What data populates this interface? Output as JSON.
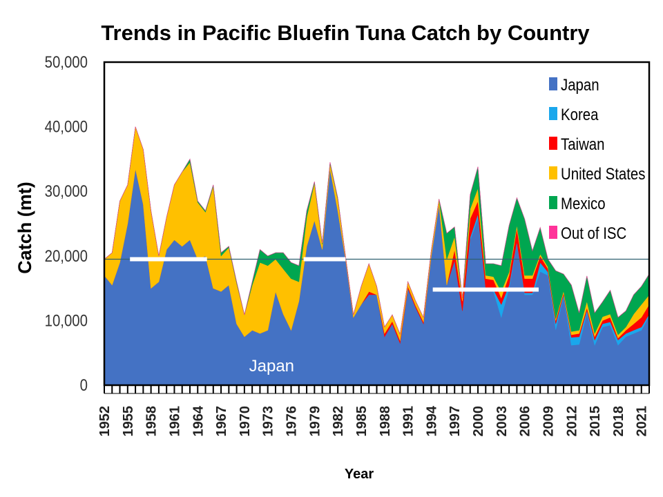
{
  "chart_data": {
    "type": "area",
    "stacked": true,
    "title": "Trends in Pacific Bluefin Tuna Catch by Country",
    "xlabel": "Year",
    "ylabel": "Catch (mt)",
    "ylim": [
      0,
      50000
    ],
    "xlim": [
      1952,
      2022
    ],
    "yticks": [
      0,
      10000,
      20000,
      30000,
      40000,
      50000
    ],
    "ytick_labels": [
      "0",
      "10,000",
      "20,000",
      "30,000",
      "40,000",
      "50,000"
    ],
    "xtick_labels": [
      "1952",
      "1955",
      "1958",
      "1961",
      "1964",
      "1967",
      "1970",
      "1973",
      "1976",
      "1979",
      "1982",
      "1985",
      "1988",
      "1991",
      "1994",
      "1997",
      "2000",
      "2003",
      "2006",
      "2009",
      "2012",
      "2015",
      "2018",
      "2021"
    ],
    "legend_position": "top-right",
    "x": [
      1952,
      1953,
      1954,
      1955,
      1956,
      1957,
      1958,
      1959,
      1960,
      1961,
      1962,
      1963,
      1964,
      1965,
      1966,
      1967,
      1968,
      1969,
      1970,
      1971,
      1972,
      1973,
      1974,
      1975,
      1976,
      1977,
      1978,
      1979,
      1980,
      1981,
      1982,
      1983,
      1984,
      1985,
      1986,
      1987,
      1988,
      1989,
      1990,
      1991,
      1992,
      1993,
      1994,
      1995,
      1996,
      1997,
      1998,
      1999,
      2000,
      2001,
      2002,
      2003,
      2004,
      2005,
      2006,
      2007,
      2008,
      2009,
      2010,
      2011,
      2012,
      2013,
      2014,
      2015,
      2016,
      2017,
      2018,
      2019,
      2020,
      2021,
      2022
    ],
    "series": [
      {
        "name": "Japan",
        "color": "#4472C4",
        "values": [
          17000,
          15500,
          19000,
          25000,
          33500,
          28000,
          15000,
          16000,
          21000,
          22500,
          21500,
          22500,
          19500,
          20000,
          15000,
          14500,
          15500,
          9500,
          7500,
          8500,
          8000,
          8500,
          14500,
          11000,
          8500,
          13000,
          21500,
          25500,
          21000,
          33500,
          27000,
          19500,
          10500,
          12500,
          14000,
          14000,
          7500,
          9500,
          6500,
          15000,
          12000,
          9500,
          20000,
          28000,
          15500,
          19300,
          11500,
          22500,
          25800,
          14700,
          14500,
          10500,
          15000,
          21900,
          14000,
          14000,
          17600,
          17000,
          8600,
          13700,
          6200,
          6300,
          11200,
          6200,
          9000,
          9300,
          6200,
          7500,
          8000,
          8500,
          10700
        ]
      },
      {
        "name": "Korea",
        "color": "#1AA7EC",
        "values": [
          0,
          0,
          0,
          0,
          0,
          0,
          0,
          0,
          0,
          0,
          0,
          0,
          0,
          0,
          0,
          0,
          0,
          0,
          0,
          0,
          0,
          0,
          0,
          0,
          0,
          0,
          0,
          0,
          0,
          0,
          0,
          0,
          0,
          0,
          0,
          0,
          0,
          0,
          0,
          0,
          0,
          0,
          0,
          0,
          0,
          0,
          0,
          400,
          700,
          200,
          300,
          2000,
          500,
          300,
          300,
          300,
          1400,
          500,
          900,
          300,
          1200,
          1200,
          400,
          800,
          500,
          500,
          800,
          500,
          500,
          500,
          300
        ]
      },
      {
        "name": "Taiwan",
        "color": "#FF0000",
        "values": [
          0,
          0,
          0,
          0,
          0,
          0,
          0,
          0,
          0,
          0,
          0,
          0,
          0,
          0,
          0,
          0,
          0,
          0,
          0,
          0,
          0,
          0,
          0,
          0,
          0,
          0,
          0,
          0,
          0,
          0,
          0,
          0,
          0,
          0,
          500,
          0,
          500,
          400,
          400,
          300,
          300,
          300,
          0,
          0,
          0,
          1700,
          1500,
          2900,
          2000,
          1600,
          1500,
          1000,
          1500,
          2100,
          2200,
          2200,
          1000,
          500,
          500,
          300,
          400,
          500,
          400,
          500,
          500,
          700,
          300,
          500,
          1000,
          1500,
          1500
        ]
      },
      {
        "name": "United States",
        "color": "#FFC000",
        "values": [
          2500,
          5000,
          9500,
          6000,
          6500,
          8500,
          12000,
          4000,
          5000,
          8500,
          11500,
          12000,
          8800,
          6800,
          15800,
          5500,
          5800,
          6300,
          3400,
          7000,
          11000,
          10000,
          5000,
          7000,
          8000,
          3000,
          4500,
          5800,
          800,
          800,
          1800,
          400,
          400,
          2800,
          4300,
          1300,
          1000,
          1000,
          1000,
          700,
          700,
          700,
          800,
          800,
          4000,
          2000,
          500,
          1500,
          2000,
          500,
          500,
          1000,
          500,
          500,
          500,
          500,
          300,
          300,
          300,
          300,
          500,
          500,
          1000,
          500,
          600,
          500,
          500,
          500,
          1500,
          2000,
          1500
        ]
      },
      {
        "name": "Mexico",
        "color": "#00A650",
        "values": [
          0,
          0,
          0,
          0,
          0,
          0,
          0,
          0,
          0,
          0,
          0,
          500,
          200,
          200,
          200,
          500,
          200,
          200,
          0,
          500,
          2000,
          1500,
          1000,
          2500,
          2500,
          2500,
          1000,
          200,
          200,
          200,
          200,
          0,
          0,
          0,
          0,
          0,
          0,
          0,
          0,
          0,
          0,
          0,
          0,
          0,
          4000,
          1500,
          0,
          2200,
          3300,
          1800,
          2000,
          4000,
          7200,
          4200,
          8700,
          3800,
          4100,
          1200,
          7400,
          2600,
          7200,
          2700,
          3900,
          3200,
          2300,
          3700,
          2700,
          2500,
          3000,
          2800,
          3200
        ]
      },
      {
        "name": "Out of ISC",
        "color": "#FF3399",
        "values": [
          0,
          0,
          0,
          0,
          0,
          0,
          0,
          0,
          0,
          0,
          0,
          0,
          0,
          0,
          0,
          0,
          0,
          0,
          0,
          0,
          0,
          0,
          0,
          0,
          0,
          0,
          0,
          0,
          0,
          0,
          0,
          0,
          0,
          0,
          0,
          0,
          0,
          0,
          0,
          0,
          0,
          0,
          0,
          0,
          0,
          0,
          0,
          0,
          0,
          0,
          0,
          0,
          0,
          0,
          0,
          0,
          0,
          0,
          0,
          0,
          0,
          0,
          0,
          0,
          0,
          0,
          0,
          0,
          0,
          0,
          0
        ]
      }
    ],
    "reference_line": {
      "value": 19500,
      "color": "#2F5F6F"
    },
    "highlight_segments": [
      {
        "from": 1955.3,
        "to": 1965.2,
        "value": 19500
      },
      {
        "from": 1977.6,
        "to": 1983.0,
        "value": 19500
      },
      {
        "from": 1994.2,
        "to": 2007.8,
        "value": 14800
      }
    ],
    "annotations": [
      {
        "text": "Japan",
        "x": 1973.5,
        "y": 3000
      }
    ]
  }
}
